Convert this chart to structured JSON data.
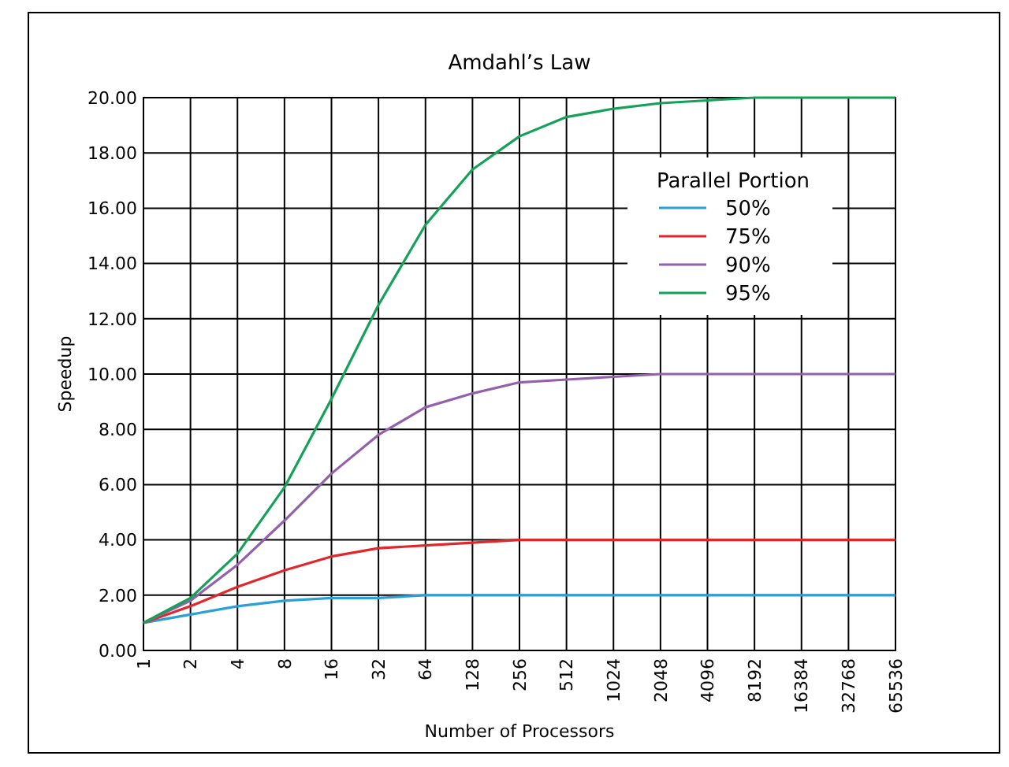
{
  "chart_data": {
    "type": "line",
    "title": "Amdahl’s Law",
    "xlabel": "Number of Processors",
    "ylabel": "Speedup",
    "legend_title": "Parallel Portion",
    "categories": [
      "1",
      "2",
      "4",
      "8",
      "16",
      "32",
      "64",
      "128",
      "256",
      "512",
      "1024",
      "2048",
      "4096",
      "8192",
      "16384",
      "32768",
      "65536"
    ],
    "series": [
      {
        "name": "50%",
        "color": "#2a9fd8",
        "values": [
          1,
          1.3,
          1.6,
          1.8,
          1.9,
          1.9,
          2,
          2,
          2,
          2,
          2,
          2,
          2,
          2,
          2,
          2,
          2
        ]
      },
      {
        "name": "75%",
        "color": "#e3262a",
        "values": [
          1,
          1.6,
          2.3,
          2.9,
          3.4,
          3.7,
          3.8,
          3.9,
          4,
          4,
          4,
          4,
          4,
          4,
          4,
          4,
          4
        ]
      },
      {
        "name": "90%",
        "color": "#9460ae",
        "values": [
          1,
          1.8,
          3.1,
          4.7,
          6.4,
          7.8,
          8.8,
          9.3,
          9.7,
          9.8,
          9.9,
          10,
          10,
          10,
          10,
          10,
          10
        ]
      },
      {
        "name": "95%",
        "color": "#13a257",
        "values": [
          1,
          1.9,
          3.5,
          5.9,
          9.1,
          12.5,
          15.4,
          17.4,
          18.6,
          19.3,
          19.6,
          19.8,
          19.9,
          20,
          20,
          20,
          20
        ]
      }
    ],
    "ylim": [
      0,
      20
    ],
    "yticks": [
      {
        "value": 0,
        "label": "0.00"
      },
      {
        "value": 2,
        "label": "2.00"
      },
      {
        "value": 4,
        "label": "4.00"
      },
      {
        "value": 6,
        "label": "6.00"
      },
      {
        "value": 8,
        "label": "8.00"
      },
      {
        "value": 10,
        "label": "10.00"
      },
      {
        "value": 12,
        "label": "12.00"
      },
      {
        "value": 14,
        "label": "14.00"
      },
      {
        "value": 16,
        "label": "16.00"
      },
      {
        "value": 18,
        "label": "18.00"
      },
      {
        "value": 20,
        "label": "20.00"
      }
    ],
    "grid": true,
    "legend": "top right",
    "marker": "none",
    "line_style": "solid"
  }
}
